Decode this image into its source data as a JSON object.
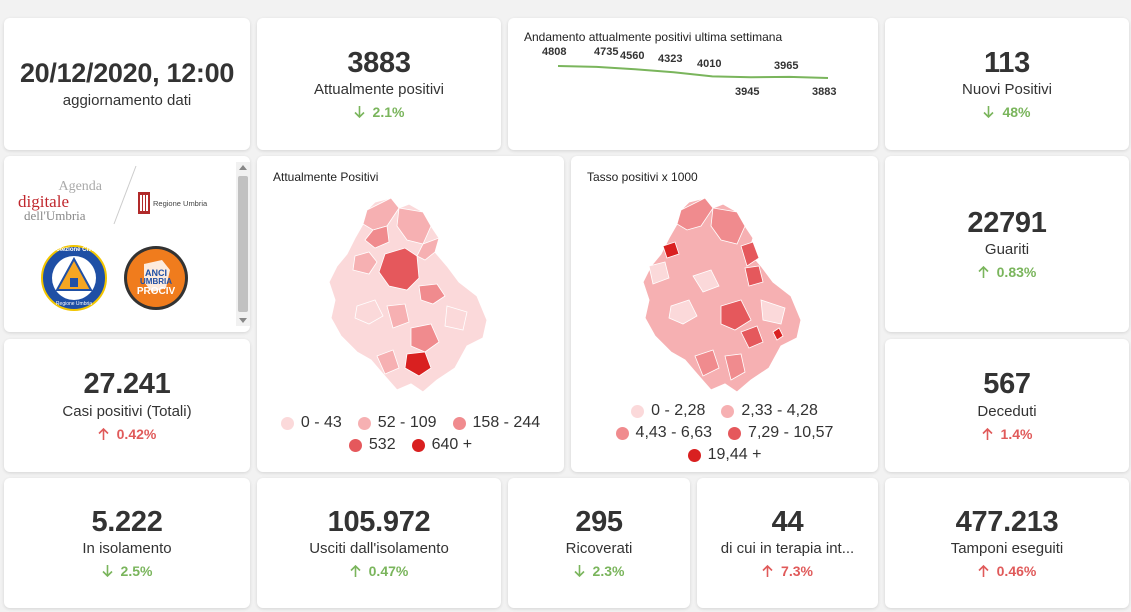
{
  "update": {
    "datetime": "20/12/2020, 12:00",
    "label": "aggiornamento dati"
  },
  "kpis": {
    "attualmente_positivi": {
      "value": "3883",
      "label": "Attualmente positivi",
      "trend": "2.1%",
      "direction": "down"
    },
    "nuovi_positivi": {
      "value": "113",
      "label": "Nuovi Positivi",
      "trend": "48%",
      "direction": "down"
    },
    "guariti": {
      "value": "22791",
      "label": "Guariti",
      "trend": "0.83%",
      "direction": "up-good"
    },
    "casi_totali": {
      "value": "27.241",
      "label": "Casi positivi (Totali)",
      "trend": "0.42%",
      "direction": "up"
    },
    "deceduti": {
      "value": "567",
      "label": "Deceduti",
      "trend": "1.4%",
      "direction": "up"
    },
    "isolamento": {
      "value": "5.222",
      "label": "In isolamento",
      "trend": "2.5%",
      "direction": "down"
    },
    "usciti": {
      "value": "105.972",
      "label": "Usciti dall'isolamento",
      "trend": "0.47%",
      "direction": "up-good"
    },
    "ricoverati": {
      "value": "295",
      "label": "Ricoverati",
      "trend": "2.3%",
      "direction": "down"
    },
    "terapia": {
      "value": "44",
      "label": "di cui in terapia int...",
      "trend": "7.3%",
      "direction": "up"
    },
    "tamponi": {
      "value": "477.213",
      "label": "Tamponi eseguiti",
      "trend": "0.46%",
      "direction": "up"
    }
  },
  "sparkline": {
    "title": "Andamento attualmente positivi ultima settimana",
    "line_color": "#7ab55c"
  },
  "chart_data": {
    "type": "line",
    "title": "Andamento attualmente positivi ultima settimana",
    "values": [
      4808,
      4735,
      4560,
      4323,
      4010,
      3945,
      3965,
      3883
    ],
    "value_labels": [
      "4808",
      "4735",
      "4560",
      "4323",
      "4010",
      "3945",
      "3965",
      "3883"
    ]
  },
  "logos": {
    "agenda_line1": "Agenda",
    "agenda_line2": "digitale",
    "agenda_line3": "dell'Umbria",
    "regione": "Regione Umbria",
    "protezione_text": "Protezione Civile",
    "protezione_sub": "Regione Umbria",
    "anci_line1": "ANCI",
    "anci_line2": "UMBRIA",
    "anci_line3": "PROCIV"
  },
  "map_positivi": {
    "title": "Attualmente Positivi",
    "legend": [
      {
        "label": "0 - 43",
        "color": "#fbd9da"
      },
      {
        "label": "52 - 109",
        "color": "#f6b0b2"
      },
      {
        "label": "158 - 244",
        "color": "#f08b8e"
      },
      {
        "label": "532",
        "color": "#e5585c"
      },
      {
        "label": "640 +",
        "color": "#d92020"
      }
    ]
  },
  "map_tasso": {
    "title": "Tasso positivi x 1000",
    "legend": [
      {
        "label": "0 - 2,28",
        "color": "#fbd9da"
      },
      {
        "label": "2,33 - 4,28",
        "color": "#f6b0b2"
      },
      {
        "label": "4,43 - 6,63",
        "color": "#f08b8e"
      },
      {
        "label": "7,29 - 10,57",
        "color": "#e5585c"
      },
      {
        "label": "19,44 +",
        "color": "#d92020"
      }
    ]
  }
}
